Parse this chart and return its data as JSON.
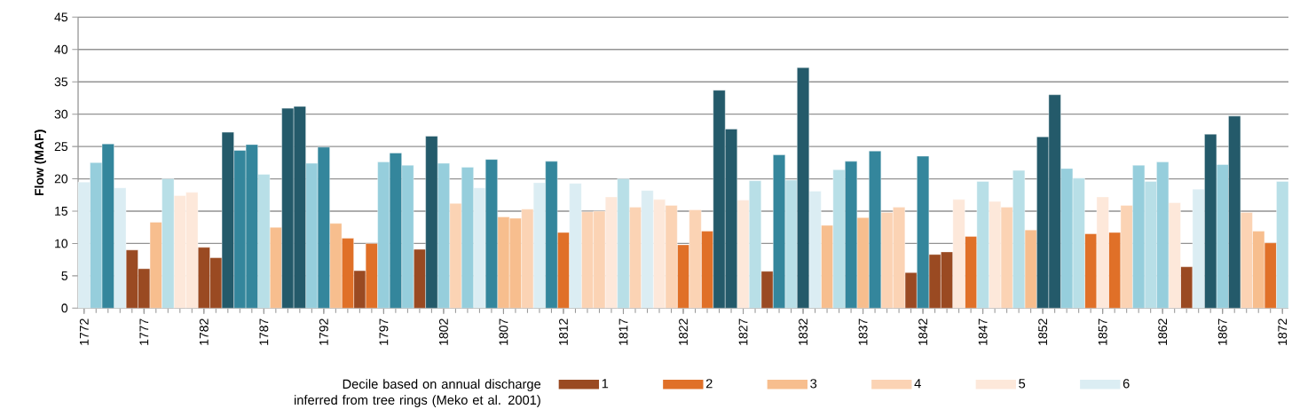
{
  "chart_data": {
    "type": "bar",
    "ylabel": "Flow (MAF)",
    "legend_title": "Decile based on annual discharge inferred from tree rings (Meko et al. 2001)",
    "legend": "bottom",
    "grid": "y",
    "xlim": [
      1771.5,
      1872.5
    ],
    "xticks": [
      1772,
      1777,
      1782,
      1787,
      1792,
      1797,
      1802,
      1807,
      1812,
      1817,
      1822,
      1827,
      1832,
      1837,
      1842,
      1847,
      1852,
      1857,
      1862,
      1867,
      1872
    ],
    "ylim": [
      0,
      45
    ],
    "yticks": [
      0,
      5,
      10,
      15,
      20,
      25,
      30,
      35,
      40,
      45
    ],
    "series": [
      {
        "name": "1",
        "color": "#9a4a22",
        "x": [
          1776,
          1777,
          1782,
          1783,
          1795,
          1800,
          1829,
          1841,
          1843,
          1844,
          1864
        ],
        "values": [
          9.0,
          6.1,
          9.4,
          7.8,
          5.8,
          9.1,
          5.7,
          5.5,
          8.3,
          8.7,
          6.4
        ]
      },
      {
        "name": "2",
        "color": "#e07028",
        "x": [
          1794,
          1796,
          1812,
          1822,
          1824,
          1846,
          1856,
          1858,
          1871
        ],
        "values": [
          10.8,
          10.0,
          11.7,
          9.8,
          11.9,
          11.1,
          11.5,
          11.7,
          10.1
        ]
      },
      {
        "name": "3",
        "color": "#f7be8e",
        "x": [
          1778,
          1788,
          1793,
          1807,
          1808,
          1834,
          1837,
          1851,
          1870
        ],
        "values": [
          13.3,
          12.5,
          13.1,
          14.1,
          13.9,
          12.8,
          14.0,
          12.1,
          11.9
        ]
      },
      {
        "name": "4",
        "color": "#fbd3b4",
        "x": [
          1803,
          1809,
          1814,
          1815,
          1818,
          1821,
          1823,
          1839,
          1840,
          1849,
          1859,
          1869
        ],
        "values": [
          16.2,
          15.3,
          14.9,
          15.0,
          15.6,
          15.9,
          15.2,
          14.8,
          15.6,
          15.6,
          15.9,
          14.8
        ]
      },
      {
        "name": "5",
        "color": "#fde8da",
        "x": [
          1780,
          1781,
          1816,
          1820,
          1827,
          1845,
          1848,
          1857,
          1863
        ],
        "values": [
          17.4,
          17.9,
          17.2,
          16.8,
          16.7,
          16.8,
          16.5,
          17.2,
          16.3
        ]
      },
      {
        "name": "6",
        "color": "#dbedf3",
        "x": [
          1772,
          1775,
          1805,
          1810,
          1813,
          1819,
          1833,
          1865
        ],
        "values": [
          19.5,
          18.6,
          18.6,
          19.4,
          19.3,
          18.2,
          18.1,
          18.4
        ]
      },
      {
        "color": "#b8dfe7",
        "x": [
          1779,
          1787,
          1817,
          1828,
          1831,
          1835,
          1847,
          1850,
          1855,
          1861,
          1872
        ],
        "values": [
          20.0,
          20.7,
          20.0,
          19.7,
          19.8,
          21.4,
          19.6,
          21.3,
          20.1,
          19.6,
          19.6
        ]
      },
      {
        "color": "#96cedc",
        "x": [
          1773,
          1791,
          1797,
          1799,
          1802,
          1804,
          1854,
          1860,
          1862,
          1867
        ],
        "values": [
          22.5,
          22.4,
          22.6,
          22.1,
          22.4,
          21.8,
          21.6,
          22.1,
          22.6,
          22.2
        ]
      },
      {
        "color": "#34869c",
        "x": [
          1774,
          1785,
          1786,
          1792,
          1798,
          1806,
          1811,
          1830,
          1836,
          1838,
          1842
        ],
        "values": [
          25.4,
          24.4,
          25.3,
          24.9,
          24.0,
          23.0,
          22.7,
          23.7,
          22.7,
          24.3,
          23.5
        ]
      },
      {
        "color": "#245a6a",
        "x": [
          1784,
          1789,
          1790,
          1801,
          1825,
          1826,
          1832,
          1852,
          1853,
          1866,
          1868
        ],
        "values": [
          27.2,
          30.9,
          31.2,
          26.6,
          33.7,
          27.7,
          37.2,
          26.5,
          33.0,
          26.9,
          29.7
        ]
      }
    ]
  }
}
